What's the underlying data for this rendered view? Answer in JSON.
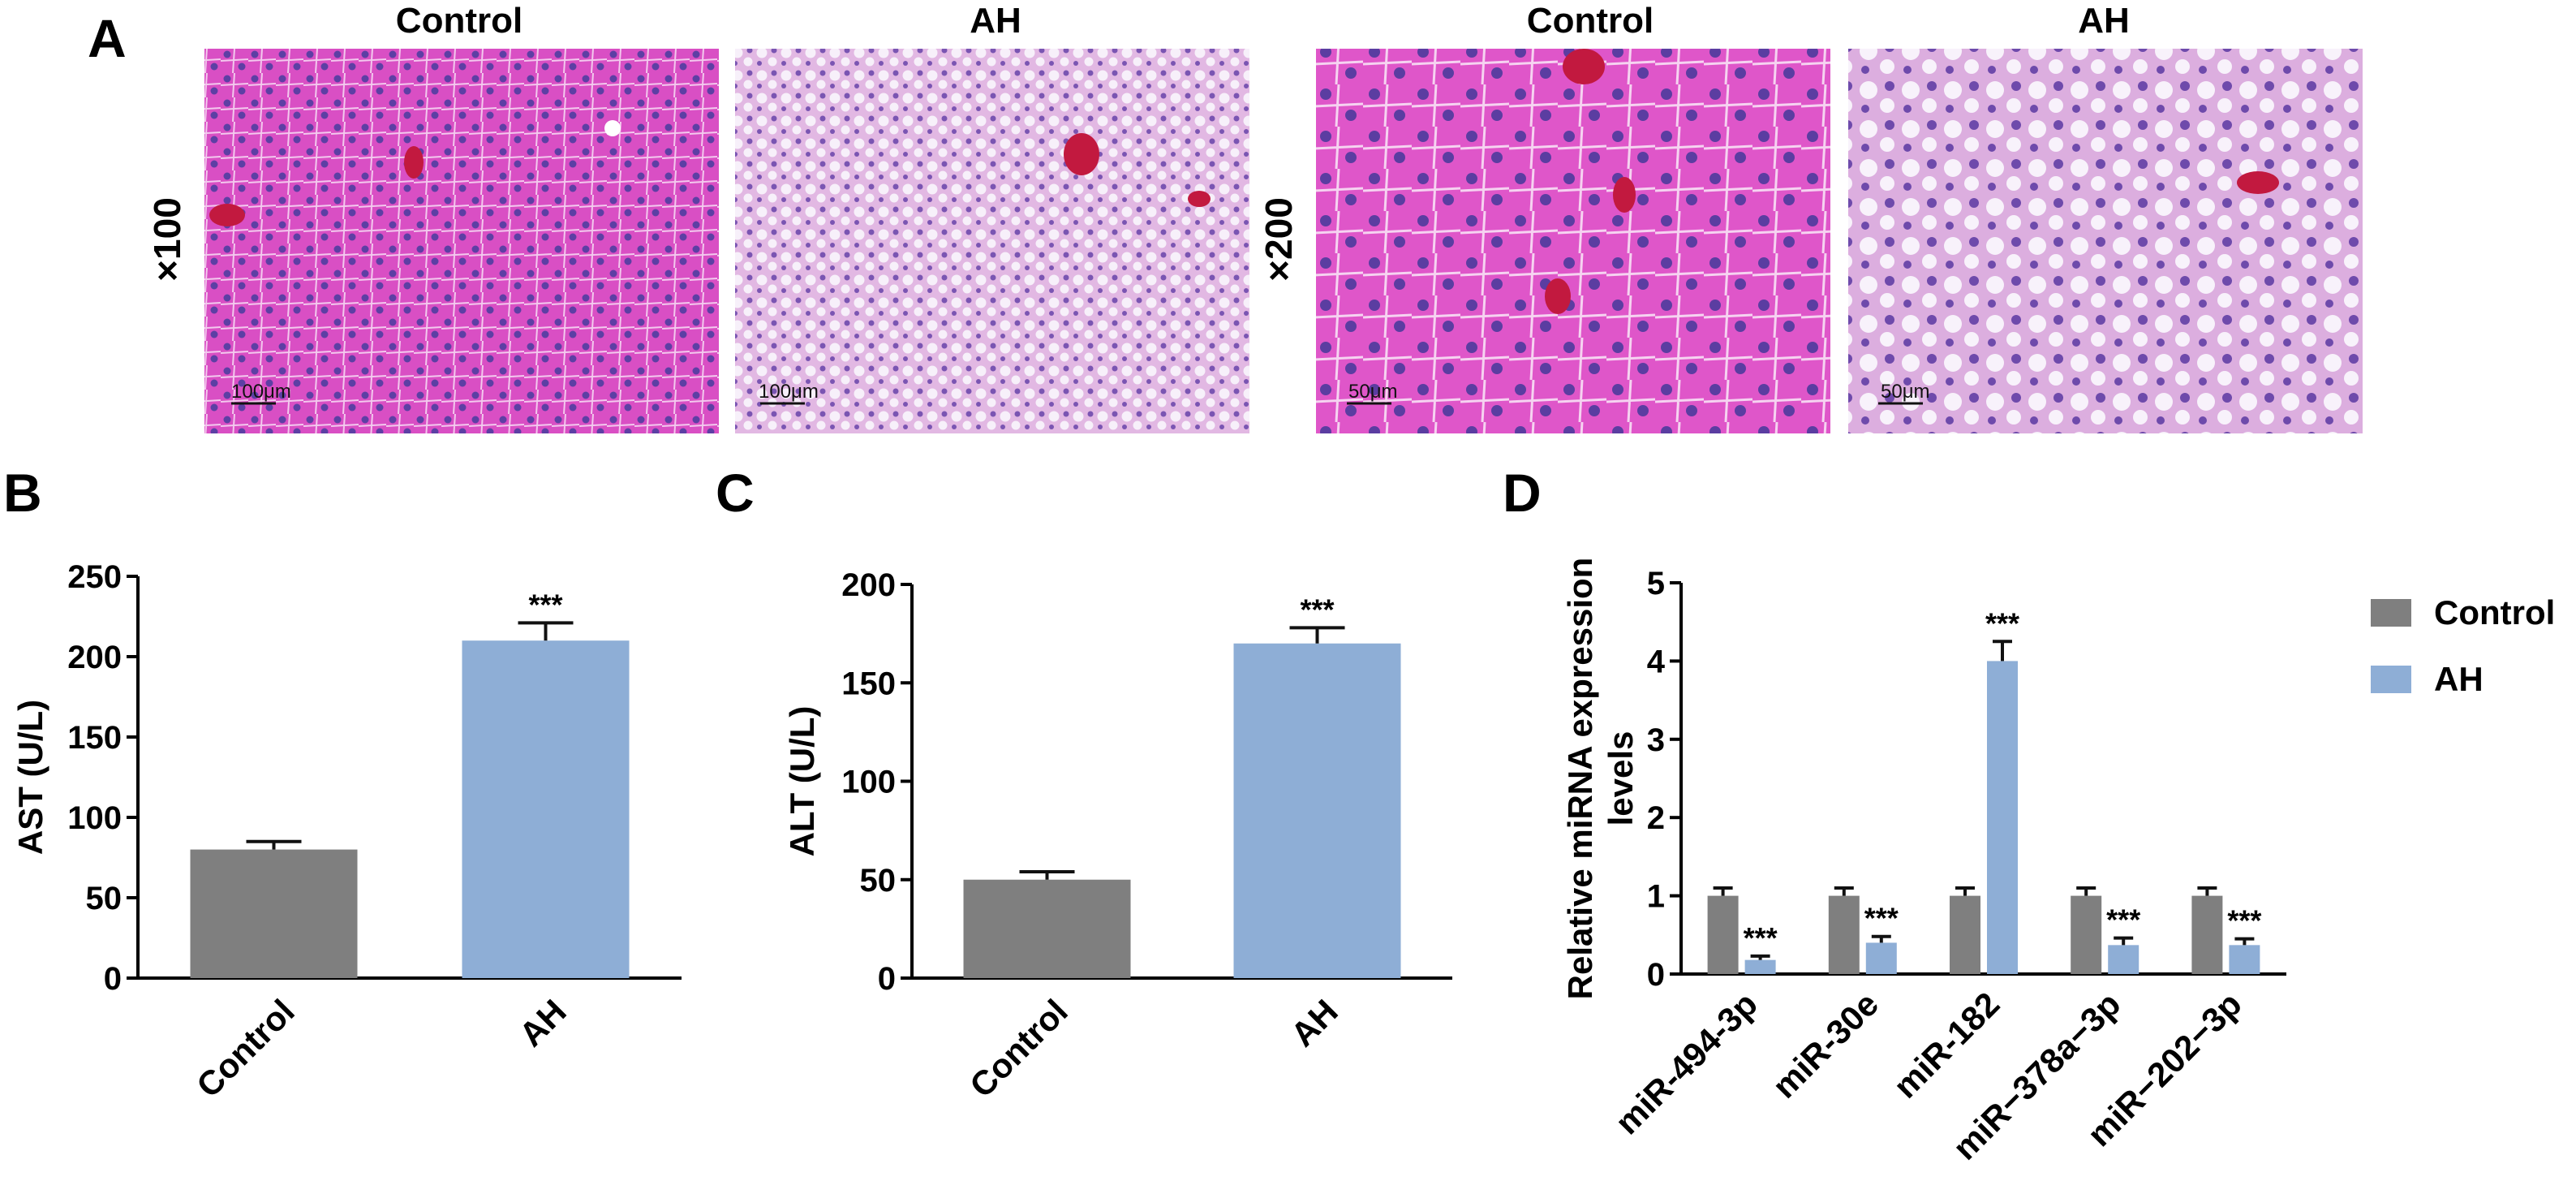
{
  "colors": {
    "control": "#7f7f7f",
    "ah": "#8eaed6",
    "axis": "#000000",
    "stain_control": "#d94fc4",
    "stain_ah": "#e2b8e3"
  },
  "panel_a": {
    "letter": "A",
    "images": [
      {
        "column_header": "Control",
        "scale_bar": "100μm",
        "group": "control"
      },
      {
        "column_header": "AH",
        "scale_bar": "100μm",
        "group": "ah"
      },
      {
        "column_header": "Control",
        "scale_bar": "50μm",
        "group": "control"
      },
      {
        "column_header": "AH",
        "scale_bar": "50μm",
        "group": "ah"
      }
    ],
    "magnifications": [
      "×100",
      "×200"
    ]
  },
  "chart_data": [
    {
      "panel": "B",
      "type": "bar",
      "categories": [
        "Control",
        "AH"
      ],
      "series": [
        {
          "values": [
            80,
            210
          ],
          "errors": [
            5,
            11
          ]
        }
      ],
      "ylabel": "AST (U/L)",
      "ylim": [
        0,
        250
      ],
      "yticks": [
        0,
        50,
        100,
        150,
        200,
        250
      ],
      "significance": [
        "",
        "***"
      ],
      "grid": false
    },
    {
      "panel": "C",
      "type": "bar",
      "categories": [
        "Control",
        "AH"
      ],
      "series": [
        {
          "values": [
            50,
            170
          ],
          "errors": [
            4,
            8
          ]
        }
      ],
      "ylabel": "ALT (U/L)",
      "ylim": [
        0,
        200
      ],
      "yticks": [
        0,
        50,
        100,
        150,
        200
      ],
      "significance": [
        "",
        "***"
      ],
      "grid": false
    },
    {
      "panel": "D",
      "type": "bar",
      "categories": [
        "miR-494-3p",
        "miR-30e",
        "miR-182",
        "miR−378a−3p",
        "miR−202−3p"
      ],
      "series": [
        {
          "name": "Control",
          "values": [
            1.0,
            1.0,
            1.0,
            1.0,
            1.0
          ],
          "errors": [
            0.1,
            0.1,
            0.1,
            0.1,
            0.1
          ]
        },
        {
          "name": "AH",
          "values": [
            0.18,
            0.4,
            4.0,
            0.37,
            0.37
          ],
          "errors": [
            0.05,
            0.08,
            0.25,
            0.09,
            0.08
          ]
        }
      ],
      "ylabel": "Relative miRNA expression levels",
      "ylim": [
        0,
        5
      ],
      "yticks": [
        0,
        1,
        2,
        3,
        4,
        5
      ],
      "significance": [
        "***",
        "***",
        "***",
        "***",
        "***"
      ],
      "legend": "right",
      "grid": false
    }
  ]
}
